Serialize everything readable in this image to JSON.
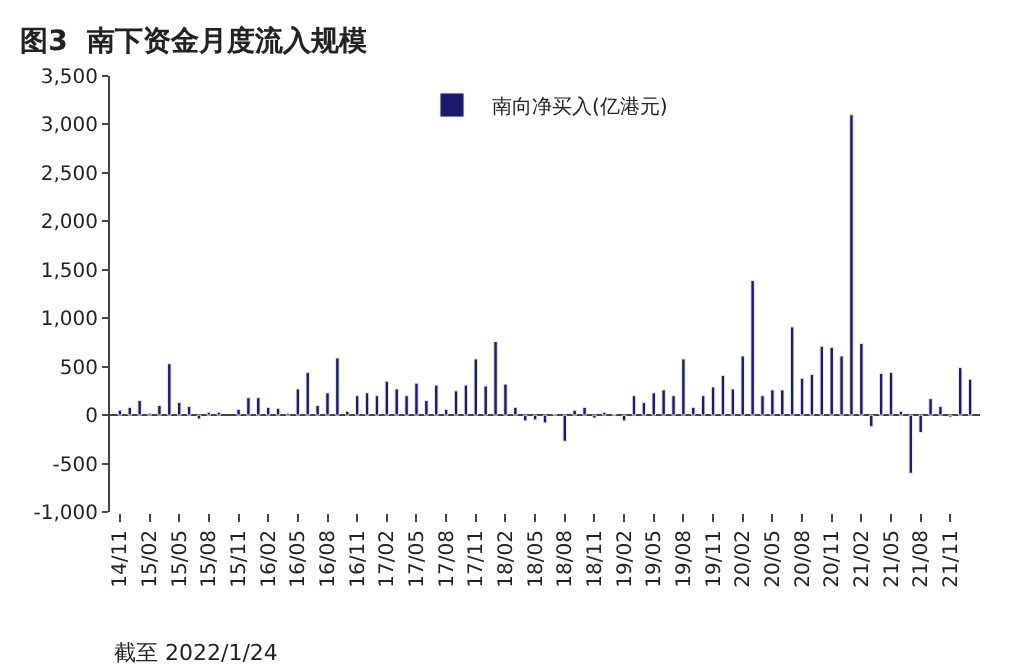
{
  "chart_data": {
    "type": "bar",
    "title": "图3  南下资金月度流入规模",
    "categories": [
      "14/11",
      null,
      null,
      "15/02",
      null,
      null,
      "15/05",
      null,
      null,
      "15/08",
      null,
      null,
      "15/11",
      null,
      null,
      "16/02",
      null,
      null,
      "16/05",
      null,
      null,
      "16/08",
      null,
      null,
      "16/11",
      null,
      null,
      "17/02",
      null,
      null,
      "17/05",
      null,
      null,
      "17/08",
      null,
      null,
      "17/11",
      null,
      null,
      "18/02",
      null,
      null,
      "18/05",
      null,
      null,
      "18/08",
      null,
      null,
      "18/11",
      null,
      null,
      "19/02",
      null,
      null,
      "19/05",
      null,
      null,
      "19/08",
      null,
      null,
      "19/11",
      null,
      null,
      "20/02",
      null,
      null,
      "20/05",
      null,
      null,
      "20/08",
      null,
      null,
      "20/11",
      null,
      null,
      "21/02",
      null,
      null,
      "21/05",
      null,
      null,
      "21/08",
      null,
      null,
      "21/11",
      null,
      null
    ],
    "series": [
      {
        "name": "南向净买入(亿港元)",
        "color": "#1c1a6b",
        "values": [
          50,
          80,
          150,
          20,
          100,
          530,
          130,
          90,
          -40,
          30,
          30,
          null,
          60,
          180,
          180,
          80,
          70,
          20,
          270,
          440,
          100,
          230,
          590,
          40,
          200,
          230,
          200,
          350,
          270,
          200,
          330,
          150,
          310,
          60,
          250,
          310,
          580,
          300,
          760,
          320,
          80,
          -60,
          -50,
          -80,
          10,
          -270,
          50,
          80,
          -30,
          30,
          10,
          -60,
          200,
          130,
          230,
          260,
          200,
          580,
          80,
          200,
          290,
          410,
          270,
          610,
          1390,
          200,
          260,
          260,
          910,
          380,
          420,
          710,
          700,
          610,
          3100,
          740,
          -120,
          430,
          440,
          40,
          -600,
          -180,
          170,
          90,
          -20,
          490,
          370
        ]
      }
    ],
    "ylim": [
      -1000,
      3500
    ],
    "yticks": [
      {
        "value": -1000,
        "label": "-1,000"
      },
      -500,
      0,
      500,
      {
        "value": 1000,
        "label": "1,000"
      },
      {
        "value": 1500,
        "label": "1,500"
      },
      {
        "value": 2000,
        "label": "2,000"
      },
      {
        "value": 2500,
        "label": "2,500"
      },
      {
        "value": 3000,
        "label": "3,000"
      },
      {
        "value": 3500,
        "label": "3,500"
      }
    ],
    "legend": "top",
    "annotations": [
      "截至 2022/1/24"
    ]
  }
}
